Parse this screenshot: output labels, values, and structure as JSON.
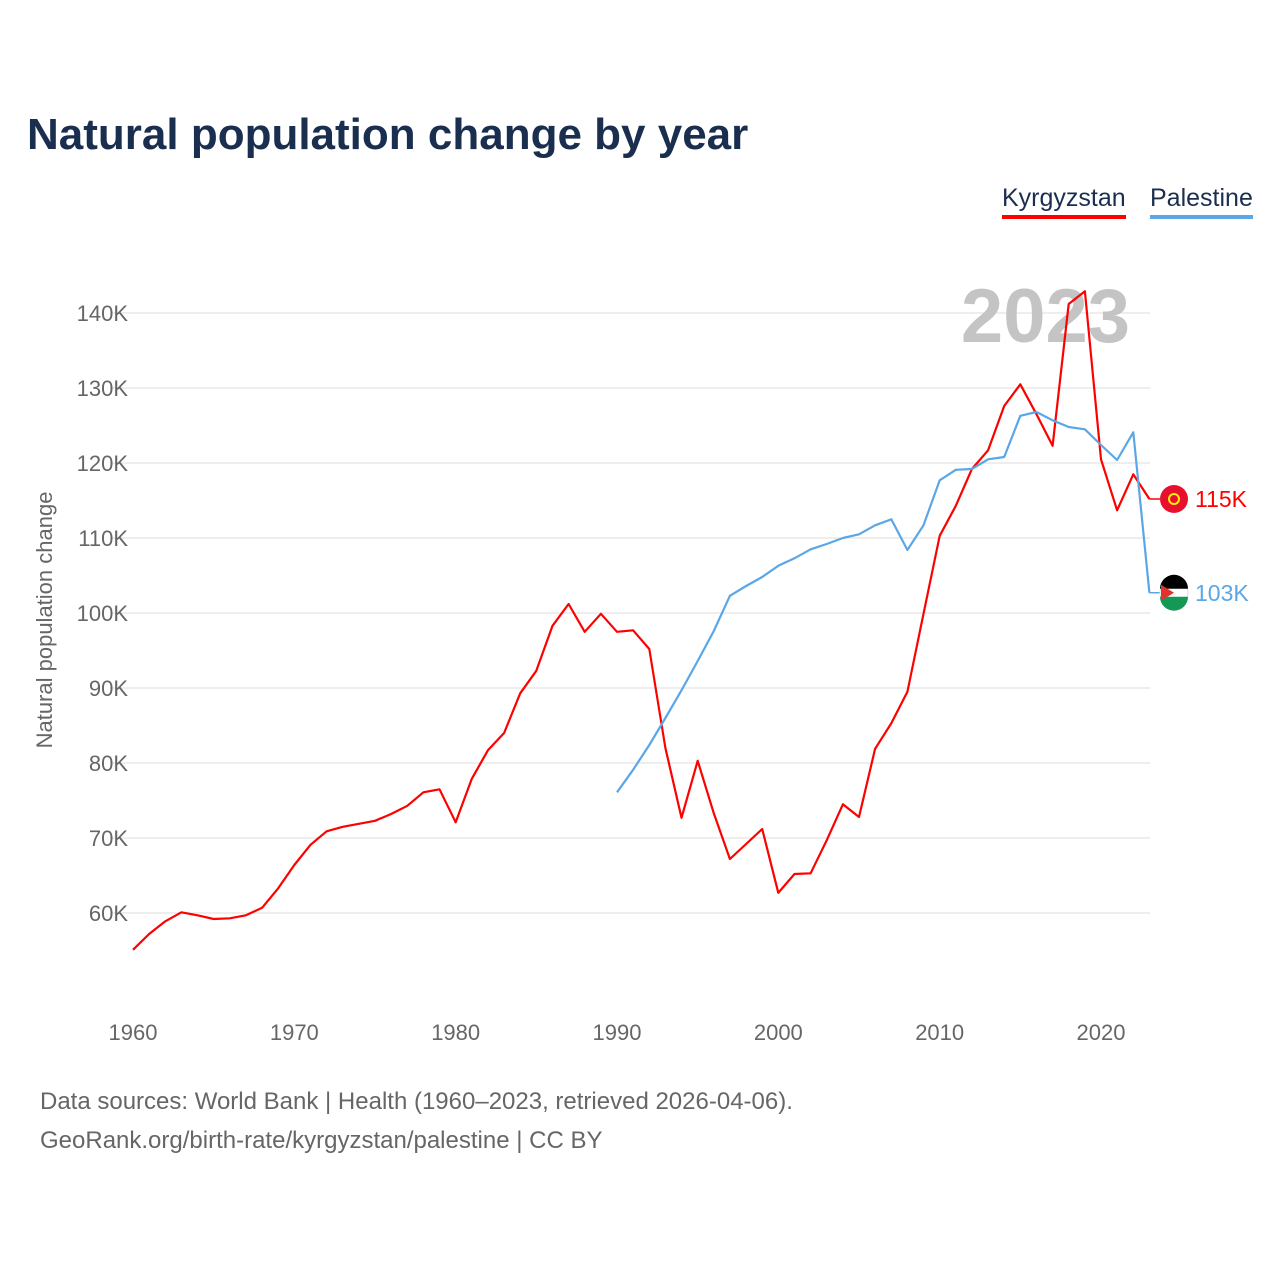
{
  "chart_data": {
    "type": "line",
    "title": "Natural population change by year",
    "ylabel": "Natural population change",
    "xlabel": "",
    "xlim": [
      1960,
      2023
    ],
    "ylim": [
      50000,
      145000
    ],
    "x_ticks": [
      1960,
      1970,
      1980,
      1990,
      2000,
      2010,
      2020
    ],
    "x_tick_labels": [
      "1960",
      "1970",
      "1980",
      "1990",
      "2000",
      "2010",
      "2020"
    ],
    "y_ticks": [
      60000,
      70000,
      80000,
      90000,
      100000,
      110000,
      120000,
      130000,
      140000
    ],
    "y_tick_labels": [
      "60K",
      "70K",
      "80K",
      "90K",
      "100K",
      "110K",
      "120K",
      "130K",
      "140K"
    ],
    "grid": true,
    "legend_placement": "top-right",
    "year_label": "2023",
    "series": [
      {
        "name": "Kyrgyzstan",
        "color": "#ff0000",
        "end_label": "115K",
        "start_year": 1960,
        "values": [
          55100,
          57200,
          58900,
          60100,
          59700,
          59200,
          59300,
          59700,
          60700,
          63300,
          66400,
          69100,
          70900,
          71500,
          71900,
          72300,
          73200,
          74300,
          76100,
          76500,
          72100,
          77900,
          81700,
          84000,
          89300,
          92300,
          98300,
          101200,
          97500,
          99900,
          97500,
          97700,
          95200,
          82000,
          72700,
          80300,
          73300,
          67200,
          69200,
          71200,
          62700,
          65200,
          65300,
          69700,
          74500,
          72800,
          81900,
          85300,
          89500,
          99900,
          110300,
          114300,
          119200,
          121700,
          127600,
          130500,
          126500,
          122300,
          141200,
          142900,
          120500,
          113700,
          118500,
          115200
        ]
      },
      {
        "name": "Palestine",
        "color": "#5aa7e8",
        "end_label": "103K",
        "start_year": 1990,
        "values": [
          76100,
          79100,
          82400,
          86000,
          89700,
          93600,
          97600,
          102300,
          103600,
          104800,
          106300,
          107300,
          108500,
          109200,
          110000,
          110500,
          111700,
          112500,
          108400,
          111700,
          117700,
          119100,
          119200,
          120500,
          120800,
          126300,
          126800,
          125700,
          124800,
          124500,
          122400,
          120400,
          124100,
          102700
        ]
      }
    ]
  },
  "footer": {
    "sources": "Data sources: World Bank | Health (1960–2023, retrieved 2026-04-06).",
    "url": "GeoRank.org/birth-rate/kyrgyzstan/palestine | CC BY"
  }
}
